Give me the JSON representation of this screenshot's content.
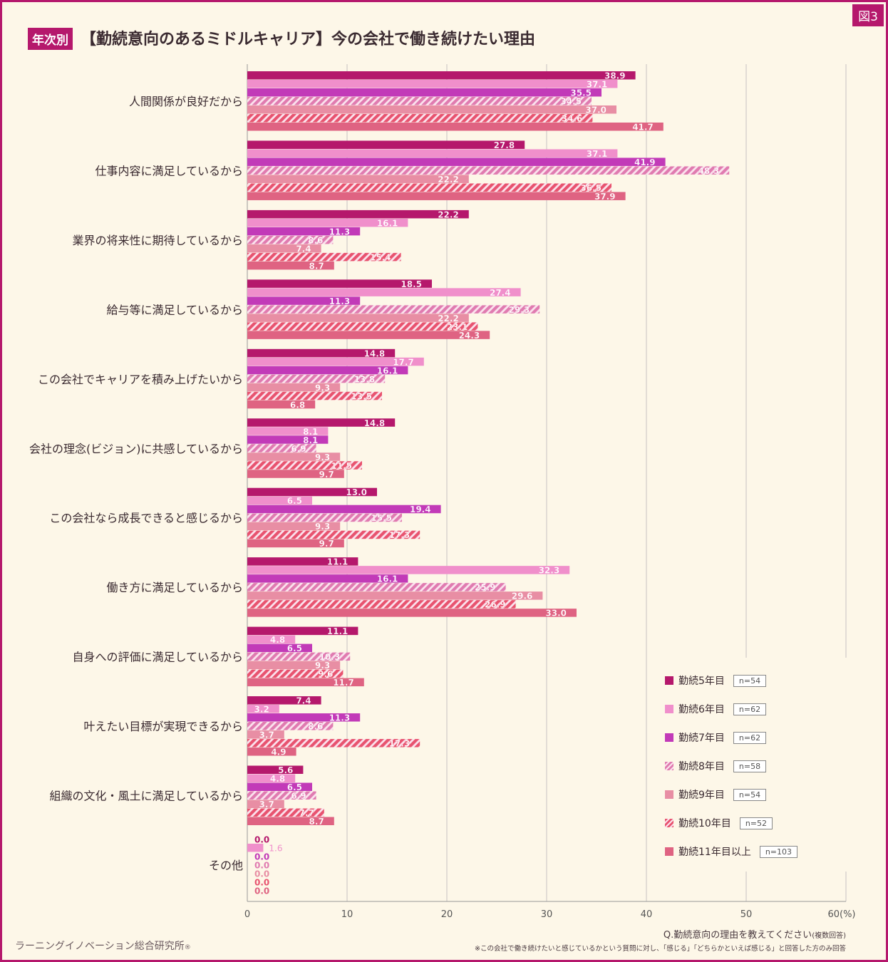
{
  "figure_label": "図3",
  "title_tag": "年次別",
  "title": "【勤続意向のあるミドルキャリア】今の会社で働き続けたい理由",
  "question": "Q.勤続意向の理由を教えてください",
  "question_note": "(複数回答)",
  "footnote": "※この会社で働き続けたいと感じているかという質問に対し、「感じる」「どちらかといえば感じる」と回答した方のみ回答",
  "source": "ラーニングイノベーション総合研究所",
  "source_mark": "®",
  "colors": {
    "y5": "#b5186c",
    "y6": "#f08fcb",
    "y7": "#c23ab8",
    "y8": "#e07bb0",
    "y9": "#e88ea4",
    "y10": "#e8536f",
    "y11": "#df6382",
    "grid": "#c8c2c2"
  },
  "chart_data": {
    "type": "bar",
    "orientation": "horizontal",
    "categories": [
      "人間関係が良好だから",
      "仕事内容に満足しているから",
      "業界の将来性に期待しているから",
      "給与等に満足しているから",
      "この会社でキャリアを積み上げたいから",
      "会社の理念(ビジョン)に共感しているから",
      "この会社なら成長できると感じるから",
      "働き方に満足しているから",
      "自身への評価に満足しているから",
      "叶えたい目標が実現できるから",
      "組織の文化・風土に満足しているから",
      "その他"
    ],
    "series": [
      {
        "name": "勤続5年目",
        "n": "n=54",
        "color": "#b5186c",
        "pattern": "solid",
        "values": [
          38.9,
          27.8,
          22.2,
          18.5,
          14.8,
          14.8,
          13.0,
          11.1,
          11.1,
          7.4,
          5.6,
          0.0
        ]
      },
      {
        "name": "勤続6年目",
        "n": "n=62",
        "color": "#f08fcb",
        "pattern": "solid",
        "values": [
          37.1,
          37.1,
          16.1,
          27.4,
          17.7,
          8.1,
          6.5,
          32.3,
          4.8,
          3.2,
          4.8,
          1.6
        ]
      },
      {
        "name": "勤続7年目",
        "n": "n=62",
        "color": "#c23ab8",
        "pattern": "solid",
        "values": [
          35.5,
          41.9,
          11.3,
          11.3,
          16.1,
          8.1,
          19.4,
          16.1,
          6.5,
          11.3,
          6.5,
          0.0
        ]
      },
      {
        "name": "勤続8年目",
        "n": "n=58",
        "color": "#e07bb0",
        "pattern": "hatch",
        "values": [
          34.5,
          48.3,
          8.6,
          29.3,
          13.8,
          6.9,
          15.5,
          25.9,
          10.3,
          8.6,
          6.9,
          0.0
        ]
      },
      {
        "name": "勤続9年目",
        "n": "n=54",
        "color": "#e88ea4",
        "pattern": "solid",
        "values": [
          37.0,
          22.2,
          7.4,
          22.2,
          9.3,
          9.3,
          9.3,
          29.6,
          9.3,
          3.7,
          3.7,
          0.0
        ]
      },
      {
        "name": "勤続10年目",
        "n": "n=52",
        "color": "#e8536f",
        "pattern": "hatch",
        "values": [
          34.6,
          36.5,
          15.4,
          23.1,
          13.5,
          11.5,
          17.3,
          26.9,
          9.6,
          17.3,
          7.7,
          0.0
        ]
      },
      {
        "name": "勤続11年目以上",
        "n": "n=103",
        "color": "#df6382",
        "pattern": "solid",
        "values": [
          41.7,
          37.9,
          8.7,
          24.3,
          6.8,
          9.7,
          9.7,
          33.0,
          11.7,
          4.9,
          8.7,
          0.0
        ]
      }
    ],
    "xlim": [
      0,
      60
    ],
    "xticks": [
      "0",
      "10",
      "20",
      "30",
      "40",
      "50",
      "60(%)"
    ],
    "grid": true,
    "legend_position": "bottom-right"
  }
}
